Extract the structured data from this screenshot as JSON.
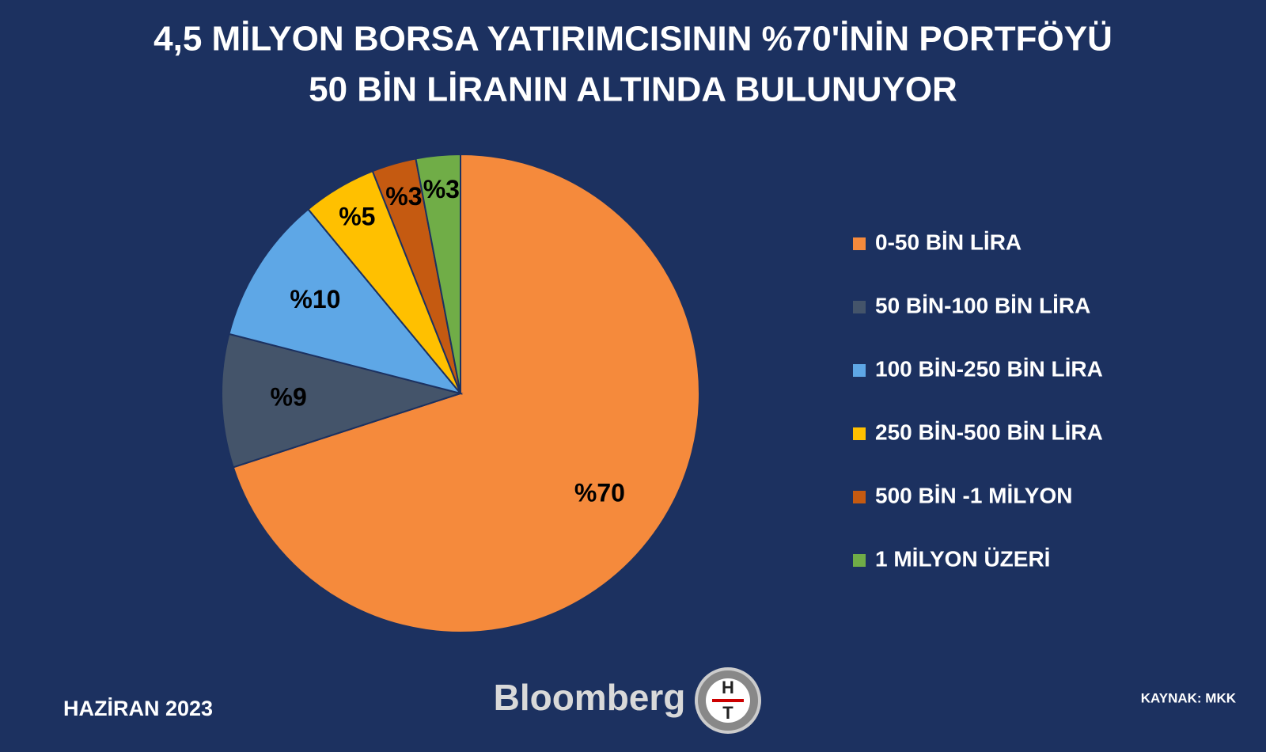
{
  "chart_data": {
    "type": "pie",
    "title": [
      "4,5 MİLYON BORSA YATIRIMCISININ %70'İNİN PORTFÖYÜ",
      "50 BİN LİRANIN ALTINDA BULUNUYOR"
    ],
    "categories": [
      "0-50 BİN LİRA",
      "50 BİN-100 BİN LİRA",
      "100 BİN-250 BİN LİRA",
      "250 BİN-500 BİN LİRA",
      "500 BİN -1 MİLYON",
      "1 MİLYON ÜZERİ"
    ],
    "values": [
      70,
      9,
      10,
      5,
      3,
      3
    ],
    "value_labels": [
      "%70",
      "%9",
      "%10",
      "%5",
      "%3",
      "%3"
    ],
    "colors": [
      "#f58a3c",
      "#44546a",
      "#5ea7e6",
      "#ffc000",
      "#c55a11",
      "#70ad47"
    ],
    "legend": "right"
  },
  "footer": {
    "date": "HAZİRAN 2023",
    "brand": "Bloomberg",
    "logo": [
      "H",
      "T"
    ],
    "source": "KAYNAK: MKK"
  }
}
